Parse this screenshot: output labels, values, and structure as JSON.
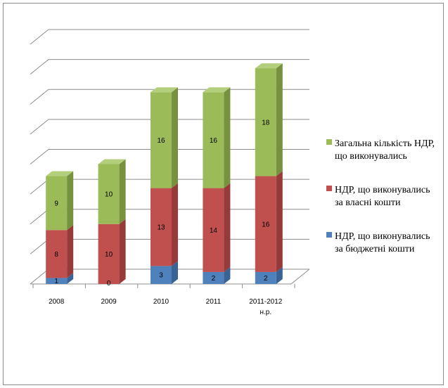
{
  "chart_data": {
    "type": "bar",
    "stacked": true,
    "three_d": true,
    "categories": [
      "2008",
      "2009",
      "2010",
      "2011",
      "2011-2012 н.р."
    ],
    "category_lines": [
      [
        "2008"
      ],
      [
        "2009"
      ],
      [
        "2010"
      ],
      [
        "2011"
      ],
      [
        "2011-2012",
        "н.р."
      ]
    ],
    "series": [
      {
        "name": "НДР, що виконувались за бюджетні кошти",
        "name_lines": [
          "НДР, що виконувались",
          "за бюджетні кошти"
        ],
        "values": [
          1,
          0,
          3,
          2,
          2
        ],
        "color": "#4f81bd",
        "top": "#7fa4d3",
        "side": "#3a6395"
      },
      {
        "name": "НДР, що виконувались за власні кошти",
        "name_lines": [
          "НДР, що виконувались",
          "за власні кошти"
        ],
        "values": [
          8,
          10,
          13,
          14,
          16
        ],
        "color": "#c0504d",
        "top": "#d47a77",
        "side": "#963b39"
      },
      {
        "name": "Загальна кількість НДР, що виконувались",
        "name_lines": [
          "Загальна кількість НДР,",
          "що виконувались"
        ],
        "values": [
          9,
          10,
          16,
          16,
          18
        ],
        "color": "#9bbb59",
        "top": "#b4cf7c",
        "side": "#77913f"
      }
    ],
    "ylim": [
      0,
      40
    ],
    "ytick_step": 5,
    "yaxis_labels_shown": false,
    "grid": true,
    "legend": "right",
    "title": "",
    "xlabel": "",
    "ylabel": ""
  }
}
